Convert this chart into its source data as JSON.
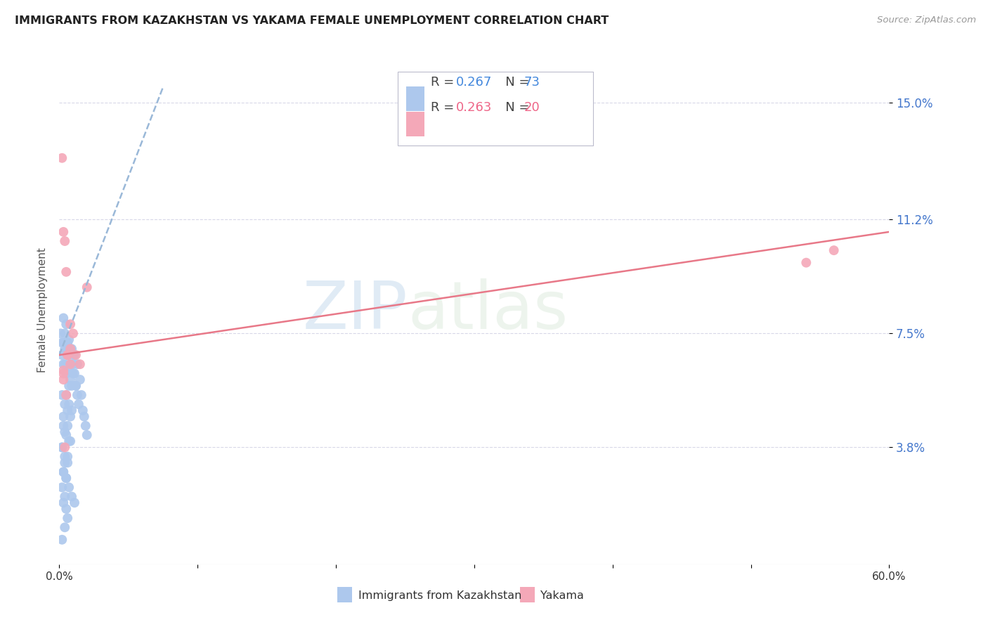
{
  "title": "IMMIGRANTS FROM KAZAKHSTAN VS YAKAMA FEMALE UNEMPLOYMENT CORRELATION CHART",
  "source": "Source: ZipAtlas.com",
  "ylabel": "Female Unemployment",
  "xlim": [
    0.0,
    0.6
  ],
  "ylim": [
    0.0,
    0.165
  ],
  "xtick_values": [
    0.0,
    0.1,
    0.2,
    0.3,
    0.4,
    0.5,
    0.6
  ],
  "xticklabels": [
    "0.0%",
    "",
    "",
    "",
    "",
    "",
    "60.0%"
  ],
  "ytick_labels": [
    "3.8%",
    "7.5%",
    "11.2%",
    "15.0%"
  ],
  "ytick_values": [
    0.038,
    0.075,
    0.112,
    0.15
  ],
  "legend_r1": "0.267",
  "legend_n1": "73",
  "legend_r2": "0.263",
  "legend_n2": "20",
  "blue_color": "#adc8ed",
  "pink_color": "#f4a8b8",
  "blue_line_color": "#9ab8d8",
  "pink_line_color": "#e87888",
  "watermark_zip": "ZIP",
  "watermark_atlas": "atlas",
  "background_color": "#ffffff",
  "grid_color": "#d8d8e8",
  "title_color": "#222222",
  "source_color": "#999999",
  "axis_label_color": "#555555",
  "ytick_color": "#4477cc",
  "xtick_color": "#333333",
  "legend_value_color_1": "#4488dd",
  "legend_value_color_2": "#ee6688",
  "blue_x": [
    0.001,
    0.002,
    0.003,
    0.004,
    0.005,
    0.006,
    0.007,
    0.008,
    0.009,
    0.01,
    0.011,
    0.012,
    0.013,
    0.014,
    0.015,
    0.016,
    0.017,
    0.018,
    0.019,
    0.02,
    0.003,
    0.005,
    0.007,
    0.009,
    0.011,
    0.013,
    0.002,
    0.004,
    0.006,
    0.008,
    0.01,
    0.012,
    0.005,
    0.007,
    0.009,
    0.003,
    0.006,
    0.004,
    0.008,
    0.002,
    0.006,
    0.004,
    0.003,
    0.005,
    0.007,
    0.009,
    0.011,
    0.004,
    0.006,
    0.008,
    0.01,
    0.003,
    0.005,
    0.007,
    0.002,
    0.004,
    0.006,
    0.008,
    0.003,
    0.005,
    0.007,
    0.002,
    0.004,
    0.006,
    0.003,
    0.005,
    0.002,
    0.004,
    0.003,
    0.005,
    0.006,
    0.004,
    0.002
  ],
  "blue_y": [
    0.075,
    0.068,
    0.072,
    0.065,
    0.07,
    0.068,
    0.063,
    0.06,
    0.058,
    0.065,
    0.062,
    0.058,
    0.055,
    0.052,
    0.06,
    0.055,
    0.05,
    0.048,
    0.045,
    0.042,
    0.08,
    0.078,
    0.073,
    0.07,
    0.068,
    0.065,
    0.072,
    0.07,
    0.068,
    0.065,
    0.062,
    0.058,
    0.055,
    0.052,
    0.05,
    0.048,
    0.045,
    0.043,
    0.04,
    0.038,
    0.035,
    0.033,
    0.03,
    0.028,
    0.025,
    0.022,
    0.02,
    0.075,
    0.072,
    0.07,
    0.068,
    0.065,
    0.062,
    0.058,
    0.055,
    0.052,
    0.05,
    0.048,
    0.045,
    0.042,
    0.04,
    0.038,
    0.035,
    0.033,
    0.03,
    0.028,
    0.025,
    0.022,
    0.02,
    0.018,
    0.015,
    0.012,
    0.008
  ],
  "pink_x": [
    0.002,
    0.003,
    0.004,
    0.005,
    0.006,
    0.008,
    0.01,
    0.012,
    0.015,
    0.02,
    0.003,
    0.005,
    0.008,
    0.003,
    0.006,
    0.004,
    0.008,
    0.003,
    0.54,
    0.56
  ],
  "pink_y": [
    0.132,
    0.108,
    0.105,
    0.095,
    0.068,
    0.078,
    0.075,
    0.068,
    0.065,
    0.09,
    0.063,
    0.055,
    0.07,
    0.06,
    0.068,
    0.038,
    0.065,
    0.062,
    0.098,
    0.102
  ],
  "blue_trend_x": [
    0.0,
    0.075
  ],
  "blue_trend_y": [
    0.068,
    0.155
  ],
  "pink_trend_x": [
    0.0,
    0.6
  ],
  "pink_trend_y": [
    0.068,
    0.108
  ]
}
